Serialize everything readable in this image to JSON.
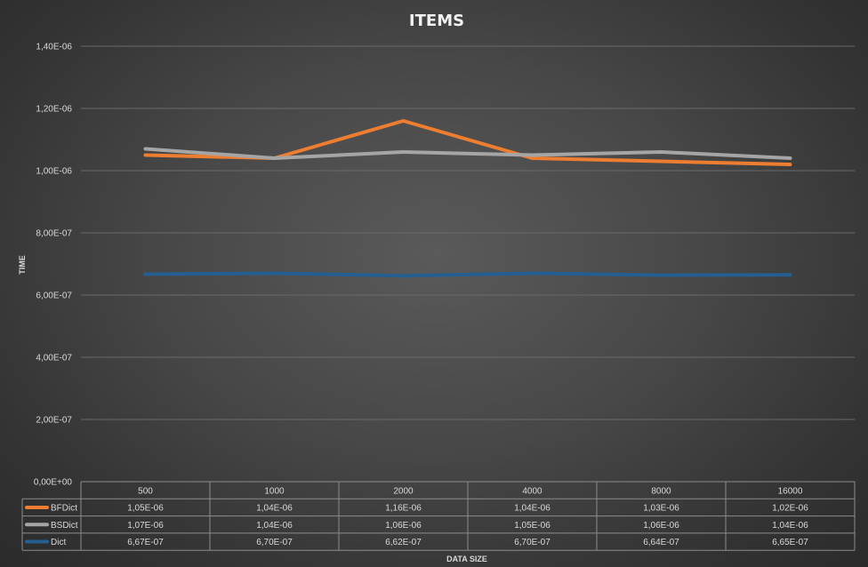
{
  "chart_data": {
    "type": "line",
    "title": "ITEMS",
    "xlabel": "DATA SIZE",
    "ylabel": "TIME",
    "ylim": [
      0,
      1.4e-06
    ],
    "yticks": [
      0,
      2e-07,
      4e-07,
      6e-07,
      8e-07,
      1e-06,
      1.2e-06,
      1.4e-06
    ],
    "ytick_labels": [
      "0,00E+00",
      "2,00E-07",
      "4,00E-07",
      "6,00E-07",
      "8,00E-07",
      "1,00E-06",
      "1,20E-06",
      "1,40E-06"
    ],
    "grid": true,
    "legend": "data-table",
    "categories": [
      "500",
      "1000",
      "2000",
      "4000",
      "8000",
      "16000"
    ],
    "series": [
      {
        "name": "BFDict",
        "color": "#ed7d31",
        "values": [
          1.05e-06,
          1.04e-06,
          1.16e-06,
          1.04e-06,
          1.03e-06,
          1.02e-06
        ],
        "labels": [
          "1,05E-06",
          "1,04E-06",
          "1,16E-06",
          "1,04E-06",
          "1,03E-06",
          "1,02E-06"
        ]
      },
      {
        "name": "BSDict",
        "color": "#a5a5a5",
        "values": [
          1.07e-06,
          1.04e-06,
          1.06e-06,
          1.05e-06,
          1.06e-06,
          1.04e-06
        ],
        "labels": [
          "1,07E-06",
          "1,04E-06",
          "1,06E-06",
          "1,05E-06",
          "1,06E-06",
          "1,04E-06"
        ]
      },
      {
        "name": "Dict",
        "color": "#255e91",
        "values": [
          6.67e-07,
          6.7e-07,
          6.62e-07,
          6.7e-07,
          6.64e-07,
          6.65e-07
        ],
        "labels": [
          "6,67E-07",
          "6,70E-07",
          "6,62E-07",
          "6,70E-07",
          "6,64E-07",
          "6,65E-07"
        ]
      }
    ]
  }
}
